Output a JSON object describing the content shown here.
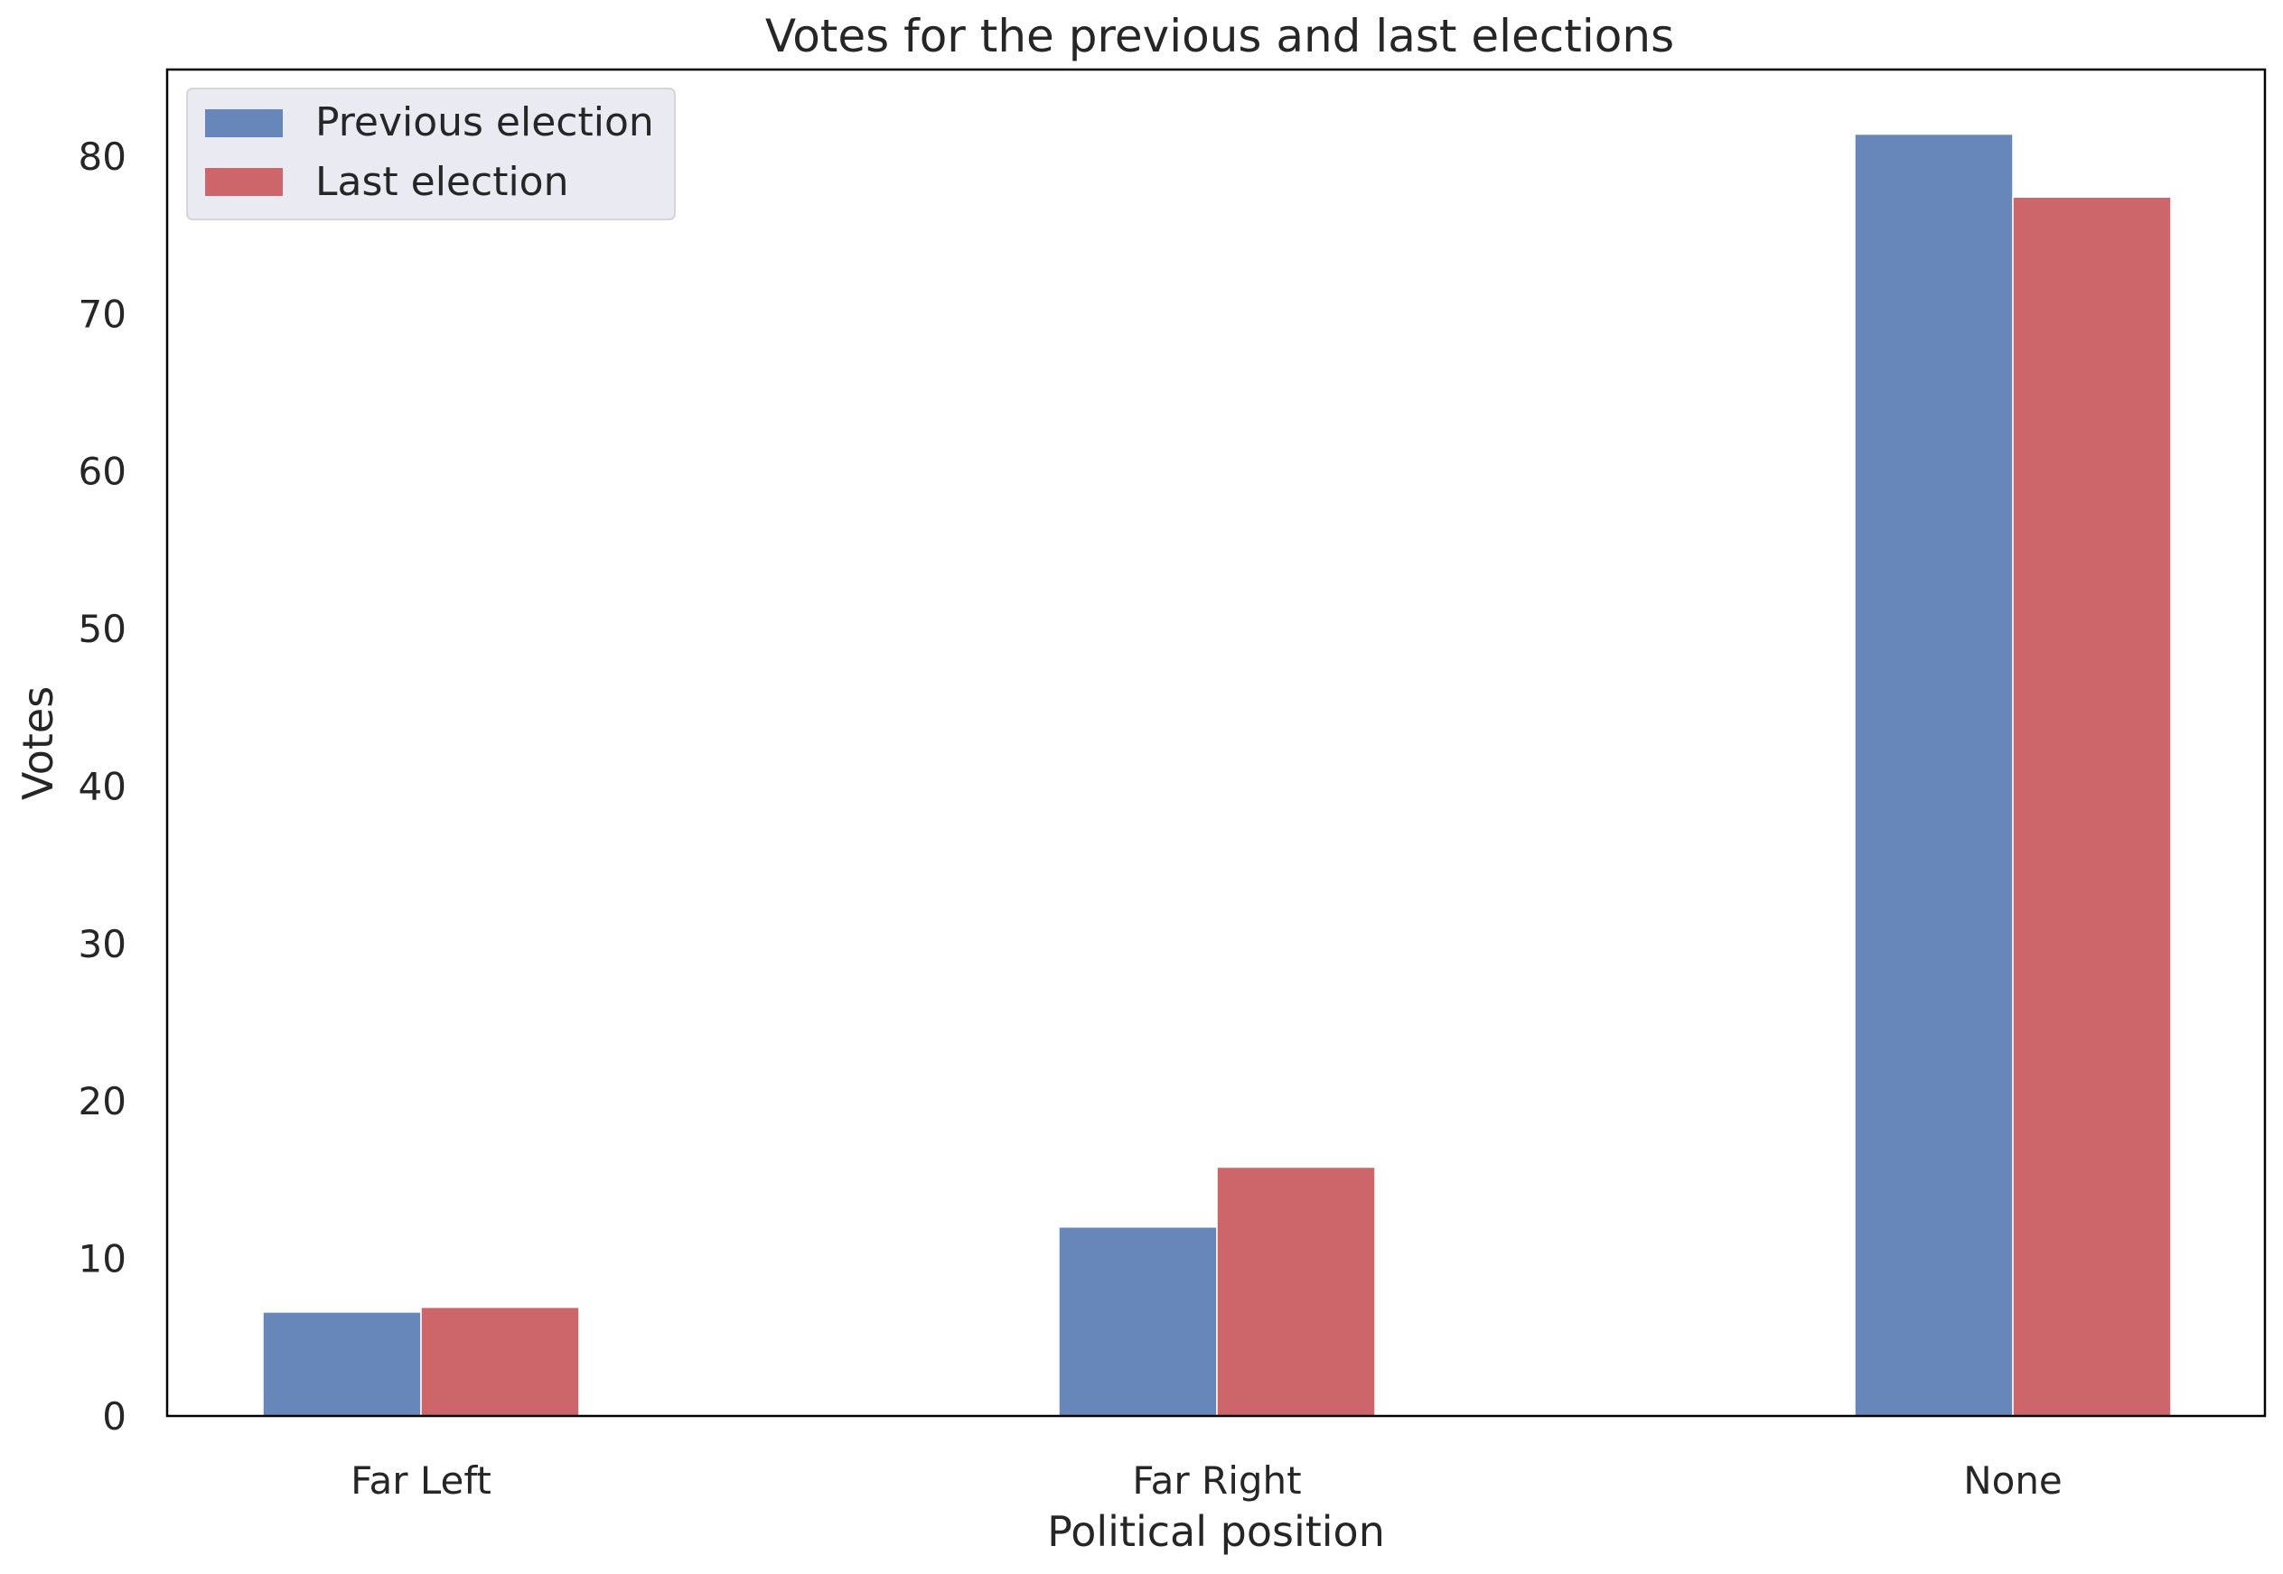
{
  "chart_data": {
    "type": "bar",
    "title": "Votes for the previous and last elections",
    "xlabel": "Political position",
    "ylabel": "Votes",
    "categories": [
      "Far Left",
      "Far Right",
      "None"
    ],
    "series": [
      {
        "name": "Previous election",
        "color": "#6787bb",
        "values": [
          6.6,
          12.0,
          81.4
        ]
      },
      {
        "name": "Last election",
        "color": "#cc666a",
        "values": [
          6.9,
          15.8,
          77.4
        ]
      }
    ],
    "ylim": [
      0,
      85.5
    ],
    "yticks": [
      0,
      10,
      20,
      30,
      40,
      50,
      60,
      70,
      80
    ],
    "grid": false,
    "legend_position": "top-left"
  }
}
